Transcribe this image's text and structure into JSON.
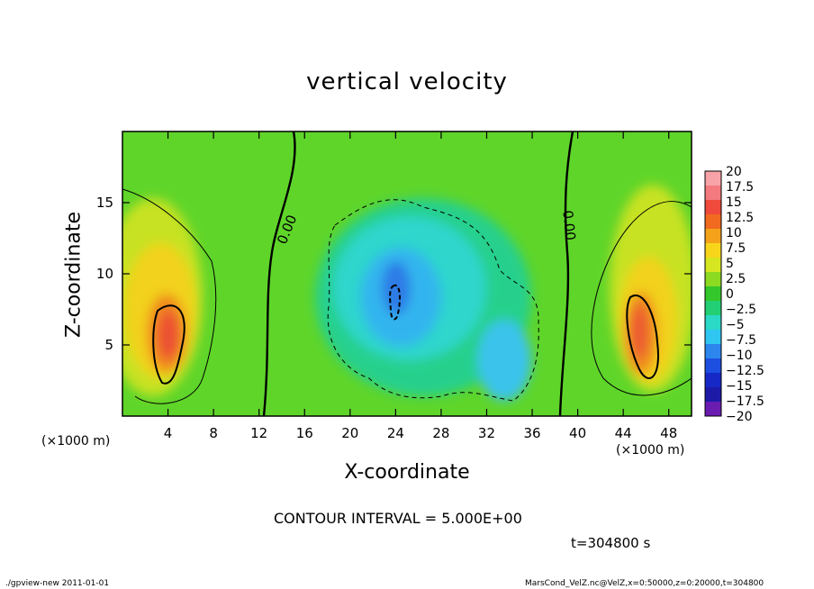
{
  "chart_data": {
    "type": "heatmap",
    "title": "vertical velocity",
    "xlabel": "X-coordinate",
    "ylabel": "Z-coordinate",
    "x_unit": "(×1000 m)",
    "y_unit": "(×1000 m)",
    "xlim": [
      0,
      50
    ],
    "ylim": [
      0,
      20
    ],
    "x_ticks": [
      4,
      8,
      12,
      16,
      20,
      24,
      28,
      32,
      36,
      40,
      44,
      48
    ],
    "y_ticks": [
      5,
      10,
      15
    ],
    "colorbar": {
      "levels": [
        "20",
        "17.5",
        "15",
        "12.5",
        "10",
        "7.5",
        "5",
        "2.5",
        "0",
        "−2.5",
        "−5",
        "−7.5",
        "−10",
        "−12.5",
        "−15",
        "−17.5",
        "−20"
      ],
      "colors": [
        "#f7a3a8",
        "#f37a7e",
        "#ef4a3c",
        "#f06a1f",
        "#f3a21a",
        "#f7d51b",
        "#d6e621",
        "#8cda22",
        "#34c72c",
        "#22cf74",
        "#2ad9c6",
        "#2fc6f2",
        "#2c86ee",
        "#1c4ee0",
        "#1628c6",
        "#1d1aa8",
        "#6a1bb0"
      ]
    },
    "contour_labels": [
      {
        "text": "0.00",
        "x": 14.5,
        "y": 13.1,
        "rotation": -68
      },
      {
        "text": "0.00",
        "x": 39.2,
        "y": 13.4,
        "rotation": 84
      }
    ],
    "contour_interval": "CONTOUR INTERVAL = 5.000E+00",
    "time": "t=304800 s"
  },
  "footer": {
    "left": "./gpview-new   2011-01-01",
    "right": "MarsCond_VelZ.nc@VelZ,x=0:50000,z=0:20000,t=304800"
  }
}
